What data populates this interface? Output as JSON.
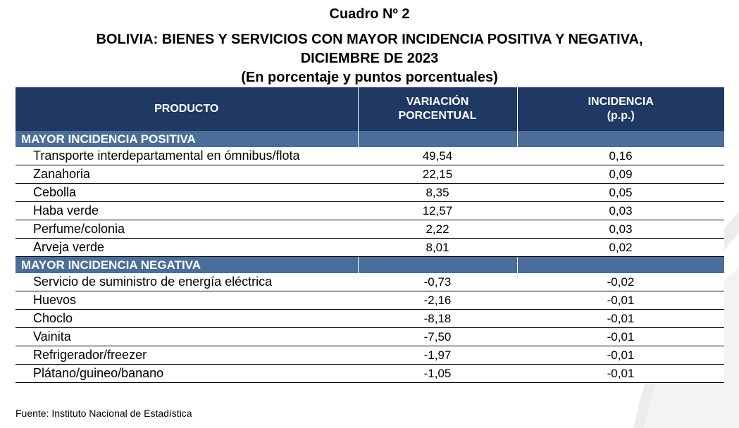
{
  "title": {
    "line1": "Cuadro Nº 2",
    "line2": "BOLIVIA: BIENES Y SERVICIOS CON MAYOR INCIDENCIA POSITIVA Y NEGATIVA,",
    "line3": "DICIEMBRE DE 2023",
    "line4": "(En porcentaje y puntos porcentuales)"
  },
  "table": {
    "headers": {
      "producto": "PRODUCTO",
      "variacion_1": "VARIACIÓN",
      "variacion_2": "PORCENTUAL",
      "incidencia_1": "INCIDENCIA",
      "incidencia_2": "(p.p.)"
    },
    "positive_section": "MAYOR INCIDENCIA POSITIVA",
    "positive_rows": [
      {
        "product": "Transporte interdepartamental en ómnibus/flota",
        "variation": "49,54",
        "incidence": "0,16"
      },
      {
        "product": "Zanahoria",
        "variation": "22,15",
        "incidence": "0,09"
      },
      {
        "product": "Cebolla",
        "variation": "8,35",
        "incidence": "0,05"
      },
      {
        "product": "Haba verde",
        "variation": "12,57",
        "incidence": "0,03"
      },
      {
        "product": "Perfume/colonia",
        "variation": "2,22",
        "incidence": "0,03"
      },
      {
        "product": "Arveja verde",
        "variation": "8,01",
        "incidence": "0,02"
      }
    ],
    "negative_section": "MAYOR INCIDENCIA NEGATIVA",
    "negative_rows": [
      {
        "product": "Servicio de suministro de energía eléctrica",
        "variation": "-0,73",
        "incidence": "-0,02"
      },
      {
        "product": "Huevos",
        "variation": "-2,16",
        "incidence": "-0,01"
      },
      {
        "product": "Choclo",
        "variation": "-8,18",
        "incidence": "-0,01"
      },
      {
        "product": "Vainita",
        "variation": "-7,50",
        "incidence": "-0,01"
      },
      {
        "product": "Refrigerador/freezer",
        "variation": "-1,97",
        "incidence": "-0,01"
      },
      {
        "product": "Plátano/guineo/banano",
        "variation": "-1,05",
        "incidence": "-0,01"
      }
    ]
  },
  "source": "Fuente: Instituto Nacional de Estadística",
  "colors": {
    "header_bg": "#1f3864",
    "section_bg": "#4a6d99"
  }
}
